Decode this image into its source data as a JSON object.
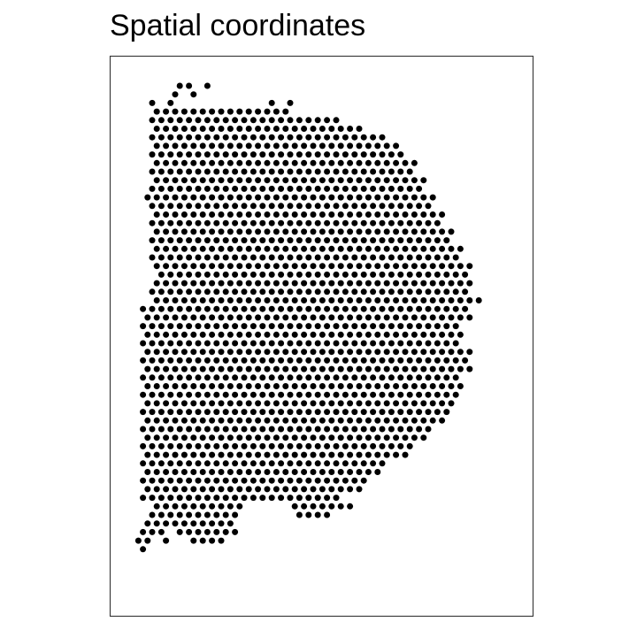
{
  "chart_data": {
    "type": "scatter",
    "title": "Spatial coordinates",
    "xlabel": "",
    "ylabel": "",
    "grid": false,
    "legend": "none",
    "axes": "hidden",
    "description_of_points": "Visium-style hexagonal lattice of spots forming a tissue outline",
    "marker": {
      "shape": "circle",
      "color": "#000000",
      "filled": true
    },
    "lattice": {
      "row_count": 55,
      "row_offset_alternates": true
    },
    "rows": [
      [
        3,
        4,
        6
      ],
      [
        2,
        4
      ],
      [
        0,
        2,
        13,
        15
      ],
      [
        0,
        1,
        2,
        3,
        4,
        5,
        6,
        7,
        8,
        9,
        10,
        11,
        12,
        13,
        14
      ],
      [
        0,
        1,
        2,
        3,
        4,
        5,
        6,
        7,
        8,
        9,
        10,
        11,
        12,
        13,
        14,
        15,
        16,
        17,
        18,
        19,
        20
      ],
      [
        0,
        1,
        2,
        3,
        4,
        5,
        6,
        7,
        8,
        9,
        10,
        11,
        12,
        13,
        14,
        15,
        16,
        17,
        18,
        19,
        20,
        21,
        22
      ],
      [
        0,
        1,
        2,
        3,
        4,
        5,
        6,
        7,
        8,
        9,
        10,
        11,
        12,
        13,
        14,
        15,
        16,
        17,
        18,
        19,
        20,
        21,
        22,
        23,
        24,
        25
      ],
      [
        0,
        1,
        2,
        3,
        4,
        5,
        6,
        7,
        8,
        9,
        10,
        11,
        12,
        13,
        14,
        15,
        16,
        17,
        18,
        19,
        20,
        21,
        22,
        23,
        24,
        25,
        26
      ],
      [
        0,
        1,
        2,
        3,
        4,
        5,
        6,
        7,
        8,
        9,
        10,
        11,
        12,
        13,
        14,
        15,
        16,
        17,
        18,
        19,
        20,
        21,
        22,
        23,
        24,
        25,
        26,
        27
      ],
      [
        0,
        1,
        2,
        3,
        4,
        5,
        6,
        7,
        8,
        9,
        10,
        11,
        12,
        13,
        14,
        15,
        16,
        17,
        18,
        19,
        20,
        21,
        22,
        23,
        24,
        25,
        26,
        27,
        28
      ],
      [
        0,
        1,
        2,
        3,
        4,
        5,
        6,
        7,
        8,
        9,
        10,
        11,
        12,
        13,
        14,
        15,
        16,
        17,
        18,
        19,
        20,
        21,
        22,
        23,
        24,
        25,
        26,
        27,
        28
      ],
      [
        0,
        1,
        2,
        3,
        4,
        5,
        6,
        7,
        8,
        9,
        10,
        11,
        12,
        13,
        14,
        15,
        16,
        17,
        18,
        19,
        20,
        21,
        22,
        23,
        24,
        25,
        26,
        27,
        28,
        29
      ],
      [
        0,
        1,
        2,
        3,
        4,
        5,
        6,
        7,
        8,
        9,
        10,
        11,
        12,
        13,
        14,
        15,
        16,
        17,
        18,
        19,
        20,
        21,
        22,
        23,
        24,
        25,
        26,
        27,
        28,
        29
      ],
      [
        -1,
        0,
        1,
        2,
        3,
        4,
        5,
        6,
        7,
        8,
        9,
        10,
        11,
        12,
        13,
        14,
        15,
        16,
        17,
        18,
        19,
        20,
        21,
        22,
        23,
        24,
        25,
        26,
        27,
        28,
        29,
        30
      ],
      [
        0,
        1,
        2,
        3,
        4,
        5,
        6,
        7,
        8,
        9,
        10,
        11,
        12,
        13,
        14,
        15,
        16,
        17,
        18,
        19,
        20,
        21,
        22,
        23,
        24,
        25,
        26,
        27,
        28,
        29,
        30
      ],
      [
        0,
        1,
        2,
        3,
        4,
        5,
        6,
        7,
        8,
        9,
        10,
        11,
        12,
        13,
        14,
        15,
        16,
        17,
        18,
        19,
        20,
        21,
        22,
        23,
        24,
        25,
        26,
        27,
        28,
        29,
        30,
        31
      ],
      [
        0,
        1,
        2,
        3,
        4,
        5,
        6,
        7,
        8,
        9,
        10,
        11,
        12,
        13,
        14,
        15,
        16,
        17,
        18,
        19,
        20,
        21,
        22,
        23,
        24,
        25,
        26,
        27,
        28,
        29,
        30,
        31
      ],
      [
        0,
        1,
        2,
        3,
        4,
        5,
        6,
        7,
        8,
        9,
        10,
        11,
        12,
        13,
        14,
        15,
        16,
        17,
        18,
        19,
        20,
        21,
        22,
        23,
        24,
        25,
        26,
        27,
        28,
        29,
        30,
        31,
        32
      ],
      [
        0,
        1,
        2,
        3,
        4,
        5,
        6,
        7,
        8,
        9,
        10,
        11,
        12,
        13,
        14,
        15,
        16,
        17,
        18,
        19,
        20,
        21,
        22,
        23,
        24,
        25,
        26,
        27,
        28,
        29,
        30,
        31,
        32
      ],
      [
        0,
        1,
        2,
        3,
        4,
        5,
        6,
        7,
        8,
        9,
        10,
        11,
        12,
        13,
        14,
        15,
        16,
        17,
        18,
        19,
        20,
        21,
        22,
        23,
        24,
        25,
        26,
        27,
        28,
        29,
        30,
        31,
        32,
        33
      ],
      [
        0,
        1,
        2,
        3,
        4,
        5,
        6,
        7,
        8,
        9,
        10,
        11,
        12,
        13,
        14,
        15,
        16,
        17,
        18,
        19,
        20,
        21,
        22,
        23,
        24,
        25,
        26,
        27,
        28,
        29,
        30,
        31,
        32,
        33
      ],
      [
        0,
        1,
        2,
        3,
        4,
        5,
        6,
        7,
        8,
        9,
        10,
        11,
        12,
        13,
        14,
        15,
        16,
        17,
        18,
        19,
        20,
        21,
        22,
        23,
        24,
        25,
        26,
        27,
        28,
        29,
        30,
        31,
        32,
        33,
        34
      ],
      [
        1,
        2,
        3,
        4,
        5,
        6,
        7,
        8,
        9,
        10,
        11,
        12,
        13,
        14,
        15,
        16,
        17,
        18,
        19,
        20,
        21,
        22,
        23,
        24,
        25,
        26,
        27,
        28,
        29,
        30,
        31,
        32,
        33,
        34
      ],
      [
        0,
        1,
        2,
        3,
        4,
        5,
        6,
        7,
        8,
        9,
        10,
        11,
        12,
        13,
        14,
        15,
        16,
        17,
        18,
        19,
        20,
        21,
        22,
        23,
        24,
        25,
        26,
        27,
        28,
        29,
        30,
        31,
        32,
        33,
        34
      ],
      [
        0,
        1,
        2,
        3,
        4,
        5,
        6,
        7,
        8,
        9,
        10,
        11,
        12,
        13,
        14,
        15,
        16,
        17,
        18,
        19,
        20,
        21,
        22,
        23,
        24,
        25,
        26,
        27,
        28,
        29,
        30,
        31,
        32,
        33,
        34
      ],
      [
        0,
        1,
        2,
        3,
        4,
        5,
        6,
        7,
        8,
        9,
        10,
        11,
        12,
        13,
        14,
        15,
        16,
        17,
        18,
        19,
        20,
        21,
        22,
        23,
        24,
        25,
        26,
        27,
        28,
        29,
        30,
        31,
        32,
        33,
        34,
        35
      ],
      [
        -1,
        0,
        1,
        2,
        3,
        4,
        5,
        6,
        7,
        8,
        9,
        10,
        11,
        12,
        13,
        14,
        15,
        16,
        17,
        18,
        19,
        20,
        21,
        22,
        23,
        24,
        25,
        26,
        27,
        28,
        29,
        30,
        31,
        32,
        33,
        34
      ],
      [
        -1,
        0,
        1,
        2,
        3,
        4,
        5,
        6,
        7,
        8,
        9,
        10,
        11,
        12,
        13,
        14,
        15,
        16,
        17,
        18,
        19,
        20,
        21,
        22,
        23,
        24,
        25,
        26,
        27,
        28,
        29,
        30,
        31,
        32,
        33,
        34
      ],
      [
        -1,
        0,
        1,
        2,
        3,
        4,
        5,
        6,
        7,
        8,
        9,
        10,
        11,
        12,
        13,
        14,
        15,
        16,
        17,
        18,
        19,
        20,
        21,
        22,
        23,
        24,
        25,
        26,
        27,
        28,
        29,
        30,
        31,
        32,
        33
      ],
      [
        -1,
        0,
        1,
        2,
        3,
        4,
        5,
        6,
        7,
        8,
        9,
        10,
        11,
        12,
        13,
        14,
        15,
        16,
        17,
        18,
        19,
        20,
        21,
        22,
        23,
        24,
        25,
        26,
        27,
        28,
        29,
        30,
        31,
        32,
        33
      ],
      [
        -1,
        0,
        1,
        2,
        3,
        4,
        5,
        6,
        7,
        8,
        9,
        10,
        11,
        12,
        13,
        14,
        15,
        16,
        17,
        18,
        19,
        20,
        21,
        22,
        23,
        24,
        25,
        26,
        27,
        28,
        29,
        30,
        31,
        32,
        33
      ],
      [
        -1,
        0,
        1,
        2,
        3,
        4,
        5,
        6,
        7,
        8,
        9,
        10,
        11,
        12,
        13,
        14,
        15,
        16,
        17,
        18,
        19,
        20,
        21,
        22,
        23,
        24,
        25,
        26,
        27,
        28,
        29,
        30,
        31,
        32,
        33,
        34
      ],
      [
        -1,
        0,
        1,
        2,
        3,
        4,
        5,
        6,
        7,
        8,
        9,
        10,
        11,
        12,
        13,
        14,
        15,
        16,
        17,
        18,
        19,
        20,
        21,
        22,
        23,
        24,
        25,
        26,
        27,
        28,
        29,
        30,
        31,
        32,
        33,
        34
      ],
      [
        -1,
        0,
        1,
        2,
        3,
        4,
        5,
        6,
        7,
        8,
        9,
        10,
        11,
        12,
        13,
        14,
        15,
        16,
        17,
        18,
        19,
        20,
        21,
        22,
        23,
        24,
        25,
        26,
        27,
        28,
        29,
        30,
        31,
        32,
        33,
        34
      ],
      [
        -1,
        0,
        1,
        2,
        3,
        4,
        5,
        6,
        7,
        8,
        9,
        10,
        11,
        12,
        13,
        14,
        15,
        16,
        17,
        18,
        19,
        20,
        21,
        22,
        23,
        24,
        25,
        26,
        27,
        28,
        29,
        30,
        31,
        32,
        33
      ],
      [
        -1,
        0,
        1,
        2,
        3,
        4,
        5,
        6,
        7,
        8,
        9,
        10,
        11,
        12,
        13,
        14,
        15,
        16,
        17,
        18,
        19,
        20,
        21,
        22,
        23,
        24,
        25,
        26,
        27,
        28,
        29,
        30,
        31,
        32,
        33
      ],
      [
        -1,
        0,
        1,
        2,
        3,
        4,
        5,
        6,
        7,
        8,
        9,
        10,
        11,
        12,
        13,
        14,
        15,
        16,
        17,
        18,
        19,
        20,
        21,
        22,
        23,
        24,
        25,
        26,
        27,
        28,
        29,
        30,
        31,
        32,
        33
      ],
      [
        -1,
        0,
        1,
        2,
        3,
        4,
        5,
        6,
        7,
        8,
        9,
        10,
        11,
        12,
        13,
        14,
        15,
        16,
        17,
        18,
        19,
        20,
        21,
        22,
        23,
        24,
        25,
        26,
        27,
        28,
        29,
        30,
        31,
        32
      ],
      [
        -1,
        0,
        1,
        2,
        3,
        4,
        5,
        6,
        7,
        8,
        9,
        10,
        11,
        12,
        13,
        14,
        15,
        16,
        17,
        18,
        19,
        20,
        21,
        22,
        23,
        24,
        25,
        26,
        27,
        28,
        29,
        30,
        31,
        32
      ],
      [
        -1,
        0,
        1,
        2,
        3,
        4,
        5,
        6,
        7,
        8,
        9,
        10,
        11,
        12,
        13,
        14,
        15,
        16,
        17,
        18,
        19,
        20,
        21,
        22,
        23,
        24,
        25,
        26,
        27,
        28,
        29,
        30,
        31
      ],
      [
        -1,
        0,
        1,
        2,
        3,
        4,
        5,
        6,
        7,
        8,
        9,
        10,
        11,
        12,
        13,
        14,
        15,
        16,
        17,
        18,
        19,
        20,
        21,
        22,
        23,
        24,
        25,
        26,
        27,
        28,
        29,
        30
      ],
      [
        -1,
        0,
        1,
        2,
        3,
        4,
        5,
        6,
        7,
        8,
        9,
        10,
        11,
        12,
        13,
        14,
        15,
        16,
        17,
        18,
        19,
        20,
        21,
        22,
        23,
        24,
        25,
        26,
        27,
        28,
        29
      ],
      [
        -1,
        0,
        1,
        2,
        3,
        4,
        5,
        6,
        7,
        8,
        9,
        10,
        11,
        12,
        13,
        14,
        15,
        16,
        17,
        18,
        19,
        20,
        21,
        22,
        23,
        24,
        25,
        26,
        27,
        28
      ],
      [
        -1,
        0,
        1,
        2,
        3,
        4,
        5,
        6,
        7,
        8,
        9,
        10,
        11,
        12,
        13,
        14,
        15,
        16,
        17,
        18,
        19,
        20,
        21,
        22,
        23,
        24,
        25,
        26,
        27
      ],
      [
        -1,
        0,
        1,
        2,
        3,
        4,
        5,
        6,
        7,
        8,
        9,
        10,
        11,
        12,
        13,
        14,
        15,
        16,
        17,
        18,
        19,
        20,
        21,
        22,
        23,
        24,
        25
      ],
      [
        -1,
        0,
        1,
        2,
        3,
        4,
        5,
        6,
        7,
        8,
        9,
        10,
        11,
        12,
        13,
        14,
        15,
        16,
        17,
        18,
        19,
        20,
        21,
        22,
        23,
        24
      ],
      [
        -1,
        0,
        1,
        2,
        3,
        4,
        5,
        6,
        7,
        8,
        9,
        10,
        11,
        12,
        13,
        14,
        15,
        16,
        17,
        18,
        19,
        20,
        21,
        22,
        23
      ],
      [
        -1,
        0,
        1,
        2,
        3,
        4,
        5,
        6,
        7,
        8,
        9,
        10,
        11,
        12,
        13,
        14,
        15,
        16,
        17,
        18,
        19,
        20,
        21,
        22
      ],
      [
        -1,
        0,
        1,
        2,
        3,
        4,
        5,
        6,
        7,
        8,
        9,
        10,
        11,
        12,
        13,
        14,
        15,
        16,
        17,
        18,
        19,
        20
      ],
      [
        0,
        1,
        2,
        3,
        4,
        5,
        6,
        7,
        8,
        9,
        15,
        16,
        17,
        18,
        19,
        20,
        21
      ],
      [
        0,
        1,
        2,
        3,
        4,
        5,
        6,
        7,
        8,
        9,
        16,
        17,
        18,
        19
      ],
      [
        -1,
        0,
        1,
        2,
        3,
        4,
        5,
        6,
        7,
        8
      ],
      [
        -1,
        0,
        1,
        3,
        4,
        5,
        6,
        7,
        8,
        9
      ],
      [
        -2,
        -1,
        1,
        4,
        5,
        6,
        7
      ],
      [
        -1
      ]
    ]
  }
}
